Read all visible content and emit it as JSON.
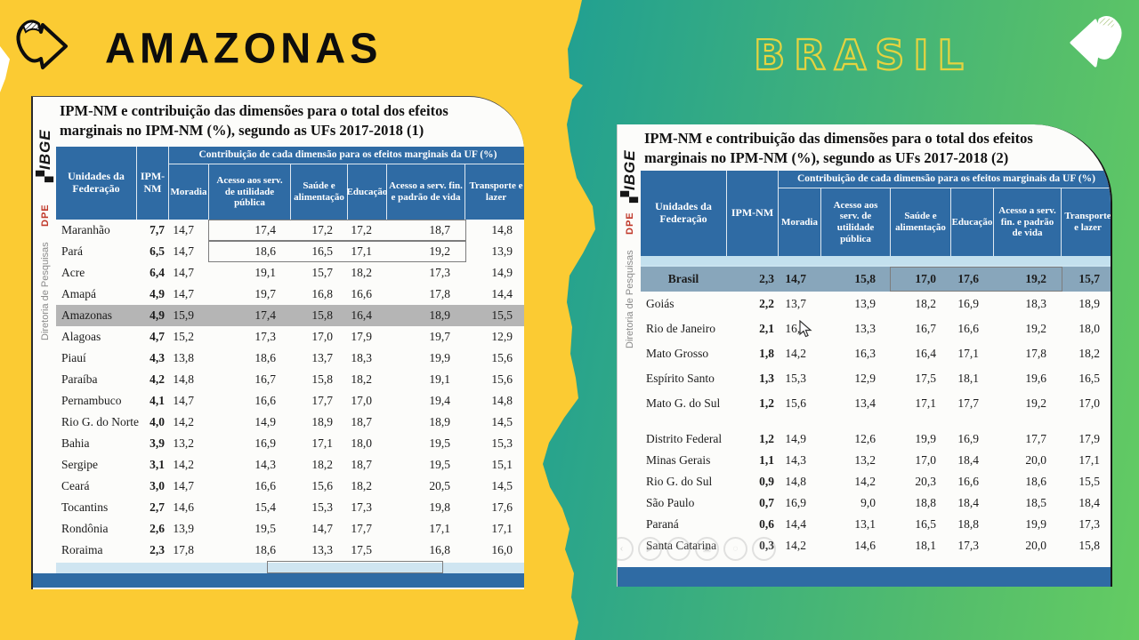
{
  "page": {
    "left_heading": "AMAZONAS",
    "right_heading": "BRASIL"
  },
  "branding": {
    "logo": "IBGE",
    "dpe": "DPE",
    "division": "Diretoria de Pesquisas"
  },
  "colors": {
    "yellow": "#FBCB33",
    "teal": "#14989B",
    "green": "#64CC62",
    "header_blue": "#2F6BA4",
    "light_blue": "#C3E0EE",
    "steel_row": "#88A6BB",
    "gray_row": "#B5B5B5",
    "outline_yellow": "#E5D33F"
  },
  "ghost_controls": [
    "back-icon",
    "play-icon",
    "pencil-icon",
    "camera-icon",
    "zoom-icon",
    "more-icon"
  ],
  "ghost_glyphs": [
    "‹",
    "▶",
    "✎",
    "▣",
    "◌",
    "⋯"
  ],
  "left_table": {
    "title_1": "IPM-NM e contribuição das dimensões para o total dos efeitos",
    "title_2": "marginais no IPM-NM (%), segundo as UFs 2017-2018 (1)",
    "group_header": "Contribuição de cada dimensão para os efeitos marginais da UF (%)",
    "col_uf": "Unidades da Federação",
    "col_ipm": "IPM-NM",
    "dims": [
      "Moradia",
      "Acesso aos serv. de utilidade pública",
      "Saúde e alimentação",
      "Educação",
      "Acesso a serv. fin. e padrão de vida",
      "Transporte e lazer"
    ],
    "rows": [
      {
        "uf": "Maranhão",
        "ipm": "7,7",
        "values": [
          "14,7",
          "17,4",
          "17,2",
          "17,2",
          "18,7",
          "14,8"
        ],
        "box": "a"
      },
      {
        "uf": "Pará",
        "ipm": "6,5",
        "values": [
          "14,7",
          "18,6",
          "16,5",
          "17,1",
          "19,2",
          "13,9"
        ],
        "box": "a"
      },
      {
        "uf": "Acre",
        "ipm": "6,4",
        "values": [
          "14,7",
          "19,1",
          "15,7",
          "18,2",
          "17,3",
          "14,9"
        ]
      },
      {
        "uf": "Amapá",
        "ipm": "4,9",
        "values": [
          "14,7",
          "19,7",
          "16,8",
          "16,6",
          "17,8",
          "14,4"
        ]
      },
      {
        "uf": "Amazonas",
        "ipm": "4,9",
        "values": [
          "15,9",
          "17,4",
          "15,8",
          "16,4",
          "18,9",
          "15,5"
        ],
        "highlight": "gray"
      },
      {
        "uf": "Alagoas",
        "ipm": "4,7",
        "values": [
          "15,2",
          "17,3",
          "17,0",
          "17,9",
          "19,7",
          "12,9"
        ]
      },
      {
        "uf": "Piauí",
        "ipm": "4,3",
        "values": [
          "13,8",
          "18,6",
          "13,7",
          "18,3",
          "19,9",
          "15,6"
        ]
      },
      {
        "uf": "Paraíba",
        "ipm": "4,2",
        "values": [
          "14,8",
          "16,7",
          "15,8",
          "18,2",
          "19,1",
          "15,6"
        ]
      },
      {
        "uf": "Pernambuco",
        "ipm": "4,1",
        "values": [
          "14,7",
          "16,6",
          "17,7",
          "17,0",
          "19,4",
          "14,8"
        ]
      },
      {
        "uf": "Rio G. do Norte",
        "ipm": "4,0",
        "values": [
          "14,2",
          "14,9",
          "18,9",
          "18,7",
          "18,9",
          "14,5"
        ]
      },
      {
        "uf": "Bahia",
        "ipm": "3,9",
        "values": [
          "13,2",
          "16,9",
          "17,1",
          "18,0",
          "19,5",
          "15,3"
        ]
      },
      {
        "uf": "Sergipe",
        "ipm": "3,1",
        "values": [
          "14,2",
          "14,3",
          "18,2",
          "18,7",
          "19,5",
          "15,1"
        ]
      },
      {
        "uf": "Ceará",
        "ipm": "3,0",
        "values": [
          "14,7",
          "16,6",
          "15,6",
          "18,2",
          "20,5",
          "14,5"
        ]
      },
      {
        "uf": "Tocantins",
        "ipm": "2,7",
        "values": [
          "14,6",
          "15,4",
          "15,3",
          "17,3",
          "19,8",
          "17,6"
        ]
      },
      {
        "uf": "Rondônia",
        "ipm": "2,6",
        "values": [
          "13,9",
          "19,5",
          "14,7",
          "17,7",
          "17,1",
          "17,1"
        ]
      },
      {
        "uf": "Roraima",
        "ipm": "2,3",
        "values": [
          "17,8",
          "18,6",
          "13,3",
          "17,5",
          "16,8",
          "16,0"
        ]
      }
    ]
  },
  "right_table": {
    "title_1": "IPM-NM e contribuição das dimensões para o total dos efeitos",
    "title_2": "marginais no IPM-NM (%), segundo as UFs 2017-2018 (2)",
    "group_header": "Contribuição de cada dimensão para os efeitos marginais da UF (%)",
    "col_uf": "Unidades da Federação",
    "col_ipm": "IPM-NM",
    "dims": [
      "Moradia",
      "Acesso aos serv. de utilidade pública",
      "Saúde e alimentação",
      "Educação",
      "Acesso a serv. fin. e padrão de vida",
      "Transporte e lazer"
    ],
    "rows": [
      {
        "uf": "Brasil",
        "ipm": "2,3",
        "values": [
          "14,7",
          "15,8",
          "17,0",
          "17,6",
          "19,2",
          "15,7"
        ],
        "highlight": "steel",
        "box": "b"
      },
      {
        "uf": "Goiás",
        "ipm": "2,2",
        "values": [
          "13,7",
          "13,9",
          "18,2",
          "16,9",
          "18,3",
          "18,9"
        ]
      },
      {
        "uf": "Rio de Janeiro",
        "ipm": "2,1",
        "values": [
          "16,2",
          "13,3",
          "16,7",
          "16,6",
          "19,2",
          "18,0"
        ]
      },
      {
        "uf": "Mato Grosso",
        "ipm": "1,8",
        "values": [
          "14,2",
          "16,3",
          "16,4",
          "17,1",
          "17,8",
          "18,2"
        ]
      },
      {
        "uf": "Espírito Santo",
        "ipm": "1,3",
        "values": [
          "15,3",
          "12,9",
          "17,5",
          "18,1",
          "19,6",
          "16,5"
        ]
      },
      {
        "uf": "Mato G. do Sul",
        "ipm": "1,2",
        "values": [
          "15,6",
          "13,4",
          "17,1",
          "17,7",
          "19,2",
          "17,0"
        ]
      },
      {
        "uf": "Distrito Federal",
        "ipm": "1,2",
        "values": [
          "14,9",
          "12,6",
          "19,9",
          "16,9",
          "17,7",
          "17,9"
        ],
        "gap_before": true,
        "small": true
      },
      {
        "uf": "Minas Gerais",
        "ipm": "1,1",
        "values": [
          "14,3",
          "13,2",
          "17,0",
          "18,4",
          "20,0",
          "17,1"
        ],
        "small": true
      },
      {
        "uf": "Rio G. do Sul",
        "ipm": "0,9",
        "values": [
          "14,8",
          "14,2",
          "20,3",
          "16,6",
          "18,6",
          "15,5"
        ],
        "small": true
      },
      {
        "uf": "São Paulo",
        "ipm": "0,7",
        "values": [
          "16,9",
          "9,0",
          "18,8",
          "18,4",
          "18,5",
          "18,4"
        ],
        "small": true
      },
      {
        "uf": "Paraná",
        "ipm": "0,6",
        "values": [
          "14,4",
          "13,1",
          "16,5",
          "18,8",
          "19,9",
          "17,3"
        ],
        "small": true
      },
      {
        "uf": "Santa Catarina",
        "ipm": "0,3",
        "values": [
          "14,2",
          "14,6",
          "18,1",
          "17,3",
          "20,0",
          "15,8"
        ],
        "small": true
      }
    ]
  }
}
